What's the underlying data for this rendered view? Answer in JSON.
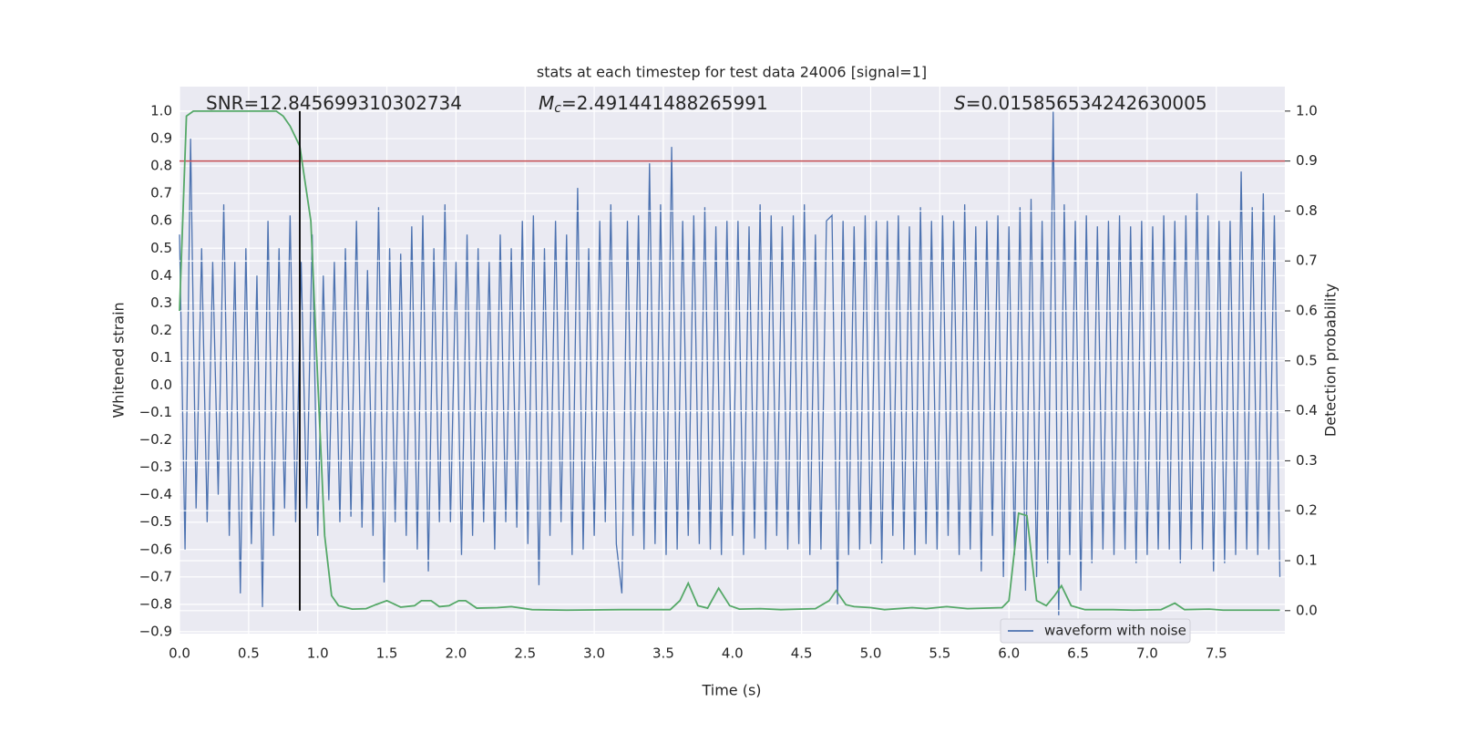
{
  "chart_data": {
    "type": "line",
    "title": "stats at each timestep for test data 24006 [signal=1]",
    "xlabel": "Time (s)",
    "ylabel": "Whitened strain",
    "y2label": "Detection probability",
    "annotations": [
      {
        "text": "SNR=12.845699310302734"
      },
      {
        "symbol": "M",
        "subscript": "c",
        "text": "=2.491441488265991"
      },
      {
        "symbol": "S",
        "text": "=0.015856534242630005"
      }
    ],
    "xlim": [
      0,
      7.996
    ],
    "ylim": [
      -0.907,
      1.09
    ],
    "y2lim": [
      -0.046,
      1.049
    ],
    "xticks": [
      {
        "value": 0,
        "label": "0.0"
      },
      0.5,
      {
        "value": 1,
        "label": "1.0"
      },
      1.5,
      {
        "value": 2,
        "label": "2.0"
      },
      2.5,
      {
        "value": 3,
        "label": "3.0"
      },
      3.5,
      {
        "value": 4,
        "label": "4.0"
      },
      4.5,
      {
        "value": 5,
        "label": "5.0"
      },
      5.5,
      {
        "value": 6,
        "label": "6.0"
      },
      6.5,
      {
        "value": 7,
        "label": "7.0"
      },
      7.5
    ],
    "yticks": [
      {
        "value": 1,
        "label": "1.0"
      },
      0.9,
      0.8,
      0.7,
      0.6,
      0.5,
      0.4,
      0.3,
      0.2,
      0.1,
      {
        "value": 0,
        "label": "0.0"
      },
      {
        "value": -0.1,
        "label": "−0.1"
      },
      {
        "value": -0.2,
        "label": "−0.2"
      },
      {
        "value": -0.3,
        "label": "−0.3"
      },
      {
        "value": -0.4,
        "label": "−0.4"
      },
      {
        "value": -0.5,
        "label": "−0.5"
      },
      {
        "value": -0.6,
        "label": "−0.6"
      },
      {
        "value": -0.7,
        "label": "−0.7"
      },
      {
        "value": -0.8,
        "label": "−0.8"
      },
      {
        "value": -0.9,
        "label": "−0.9"
      }
    ],
    "y2ticks": [
      {
        "value": 0,
        "label": "0.0"
      },
      0.1,
      0.2,
      0.3,
      0.4,
      0.5,
      0.6,
      0.7,
      0.8,
      0.9,
      {
        "value": 1,
        "label": "1.0"
      }
    ],
    "grid": true,
    "legend": "lower right",
    "threshold": {
      "value": 0.9,
      "axis": "y2",
      "color": "#c44e52"
    },
    "vline": {
      "x": 0.87,
      "ymin": 0,
      "ymax": 1,
      "axis": "y2",
      "color": "#000000"
    },
    "series": [
      {
        "name": "waveform with noise",
        "color": "#4c72b0",
        "x": [
          0,
          0.04,
          0.08,
          0.12,
          0.16,
          0.2,
          0.24,
          0.28,
          0.32,
          0.36,
          0.4,
          0.44,
          0.48,
          0.52,
          0.56,
          0.6,
          0.64,
          0.68,
          0.72,
          0.76,
          0.8,
          0.84,
          0.88,
          0.92,
          0.96,
          1,
          1.04,
          1.08,
          1.12,
          1.16,
          1.2,
          1.24,
          1.28,
          1.32,
          1.36,
          1.4,
          1.44,
          1.48,
          1.52,
          1.56,
          1.6,
          1.64,
          1.68,
          1.72,
          1.76,
          1.8,
          1.84,
          1.88,
          1.92,
          1.96,
          2,
          2.04,
          2.08,
          2.12,
          2.16,
          2.2,
          2.24,
          2.28,
          2.32,
          2.36,
          2.4,
          2.44,
          2.48,
          2.52,
          2.56,
          2.6,
          2.64,
          2.68,
          2.72,
          2.76,
          2.8,
          2.84,
          2.88,
          2.92,
          2.96,
          3,
          3.04,
          3.08,
          3.12,
          3.16,
          3.2,
          3.24,
          3.28,
          3.32,
          3.36,
          3.4,
          3.44,
          3.48,
          3.52,
          3.56,
          3.6,
          3.64,
          3.68,
          3.72,
          3.76,
          3.8,
          3.84,
          3.88,
          3.92,
          3.96,
          4,
          4.04,
          4.08,
          4.12,
          4.16,
          4.2,
          4.24,
          4.28,
          4.32,
          4.36,
          4.4,
          4.44,
          4.48,
          4.52,
          4.56,
          4.6,
          4.64,
          4.68,
          4.72,
          4.76,
          4.8,
          4.84,
          4.88,
          4.92,
          4.96,
          5,
          5.04,
          5.08,
          5.12,
          5.16,
          5.2,
          5.24,
          5.28,
          5.32,
          5.36,
          5.4,
          5.44,
          5.48,
          5.52,
          5.56,
          5.6,
          5.64,
          5.68,
          5.72,
          5.76,
          5.8,
          5.84,
          5.88,
          5.92,
          5.96,
          6,
          6.04,
          6.08,
          6.12,
          6.16,
          6.2,
          6.24,
          6.28,
          6.32,
          6.36,
          6.4,
          6.44,
          6.48,
          6.52,
          6.56,
          6.6,
          6.64,
          6.68,
          6.72,
          6.76,
          6.8,
          6.84,
          6.88,
          6.92,
          6.96,
          7,
          7.04,
          7.08,
          7.12,
          7.16,
          7.2,
          7.24,
          7.28,
          7.32,
          7.36,
          7.4,
          7.44,
          7.48,
          7.52,
          7.56,
          7.6,
          7.64,
          7.68,
          7.72,
          7.76,
          7.8,
          7.84,
          7.88,
          7.92,
          7.96
        ],
        "values": [
          0.55,
          -0.6,
          0.9,
          -0.45,
          0.5,
          -0.5,
          0.45,
          -0.4,
          0.66,
          -0.55,
          0.45,
          -0.76,
          0.5,
          -0.58,
          0.4,
          -0.81,
          0.6,
          -0.55,
          0.5,
          -0.45,
          0.62,
          -0.5,
          0.45,
          -0.45,
          0.55,
          -0.55,
          0.4,
          -0.42,
          0.45,
          -0.5,
          0.5,
          -0.48,
          0.6,
          -0.52,
          0.42,
          -0.55,
          0.65,
          -0.72,
          0.5,
          -0.5,
          0.48,
          -0.55,
          0.58,
          -0.6,
          0.62,
          -0.68,
          0.5,
          -0.5,
          0.66,
          -0.5,
          0.45,
          -0.62,
          0.55,
          -0.55,
          0.5,
          -0.5,
          0.45,
          -0.6,
          0.55,
          -0.5,
          0.5,
          -0.52,
          0.6,
          -0.58,
          0.62,
          -0.73,
          0.5,
          -0.55,
          0.6,
          -0.5,
          0.55,
          -0.62,
          0.72,
          -0.6,
          0.5,
          -0.55,
          0.6,
          -0.5,
          0.66,
          -0.58,
          -0.76,
          0.6,
          -0.55,
          0.62,
          -0.6,
          0.81,
          -0.58,
          0.66,
          -0.62,
          0.87,
          -0.6,
          0.6,
          -0.55,
          0.62,
          -0.58,
          0.65,
          -0.6,
          0.58,
          -0.62,
          0.6,
          -0.55,
          0.6,
          -0.62,
          0.58,
          -0.56,
          0.66,
          -0.6,
          0.62,
          -0.55,
          0.58,
          -0.6,
          0.62,
          -0.58,
          0.66,
          -0.62,
          0.55,
          -0.6,
          0.6,
          0.62,
          -0.8,
          0.6,
          -0.62,
          0.58,
          -0.6,
          0.62,
          -0.58,
          0.6,
          -0.65,
          0.6,
          -0.55,
          0.62,
          -0.6,
          0.58,
          -0.62,
          0.65,
          -0.58,
          0.6,
          -0.6,
          0.62,
          -0.55,
          0.6,
          -0.62,
          0.66,
          -0.6,
          0.58,
          -0.68,
          0.6,
          -0.55,
          0.62,
          -0.7,
          0.58,
          -0.62,
          0.65,
          -0.75,
          0.68,
          -0.7,
          0.6,
          -0.65,
          1.0,
          -0.84,
          0.66,
          -0.62,
          0.6,
          -0.75,
          0.62,
          -0.65,
          0.58,
          -0.6,
          0.6,
          -0.62,
          0.62,
          -0.6,
          0.58,
          -0.65,
          0.6,
          -0.62,
          0.58,
          -0.6,
          0.62,
          -0.6,
          0.6,
          -0.65,
          0.62,
          -0.6,
          0.7,
          -0.6,
          0.62,
          -0.68,
          0.6,
          -0.65,
          0.6,
          -0.62,
          0.78,
          -0.6,
          0.65,
          -0.62,
          0.7,
          -0.6,
          0.62,
          -0.7
        ]
      },
      {
        "color": "#55a868",
        "axis": "y2",
        "x": [
          0,
          0.05,
          0.1,
          0.7,
          0.75,
          0.8,
          0.87,
          0.95,
          1,
          1.05,
          1.1,
          1.15,
          1.25,
          1.35,
          1.42,
          1.5,
          1.6,
          1.7,
          1.75,
          1.82,
          1.88,
          1.95,
          2.02,
          2.07,
          2.15,
          2.3,
          2.4,
          2.55,
          2.8,
          3.2,
          3.55,
          3.62,
          3.68,
          3.75,
          3.82,
          3.9,
          3.98,
          4.05,
          4.2,
          4.35,
          4.6,
          4.7,
          4.75,
          4.82,
          4.88,
          5,
          5.1,
          5.3,
          5.4,
          5.55,
          5.7,
          5.95,
          6,
          6.07,
          6.13,
          6.2,
          6.27,
          6.33,
          6.38,
          6.45,
          6.55,
          6.75,
          6.9,
          7.1,
          7.2,
          7.27,
          7.45,
          7.55,
          7.96
        ],
        "values": [
          0.6,
          0.99,
          1.0,
          1.0,
          0.99,
          0.97,
          0.93,
          0.78,
          0.46,
          0.15,
          0.03,
          0.01,
          0.003,
          0.004,
          0.012,
          0.02,
          0.007,
          0.01,
          0.02,
          0.02,
          0.008,
          0.01,
          0.02,
          0.02,
          0.005,
          0.006,
          0.008,
          0.002,
          0.001,
          0.002,
          0.002,
          0.02,
          0.055,
          0.01,
          0.005,
          0.045,
          0.01,
          0.003,
          0.004,
          0.002,
          0.004,
          0.02,
          0.04,
          0.012,
          0.008,
          0.006,
          0.002,
          0.006,
          0.004,
          0.008,
          0.004,
          0.006,
          0.02,
          0.195,
          0.19,
          0.02,
          0.01,
          0.03,
          0.05,
          0.01,
          0.002,
          0.002,
          0.001,
          0.002,
          0.015,
          0.002,
          0.003,
          0.001,
          0.001
        ]
      }
    ]
  }
}
